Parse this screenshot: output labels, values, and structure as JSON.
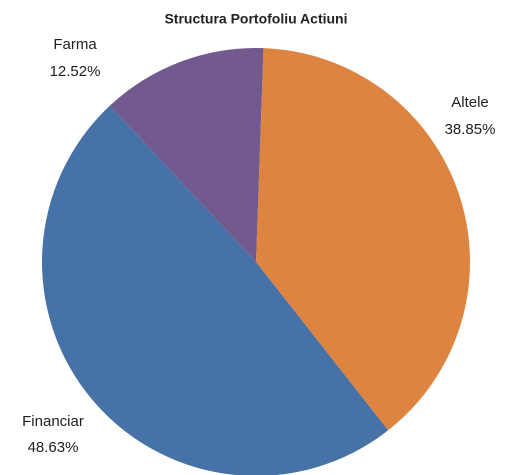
{
  "chart_data": {
    "type": "pie",
    "title": "Structura Portofoliu Actiuni",
    "categories": [
      "Altele",
      "Financiar",
      "Farma"
    ],
    "values": [
      38.85,
      48.63,
      12.52
    ],
    "value_labels": [
      "38.85%",
      "48.63%",
      "12.52%"
    ],
    "colors": [
      "#dd8440",
      "#4672a8",
      "#72598e"
    ]
  }
}
